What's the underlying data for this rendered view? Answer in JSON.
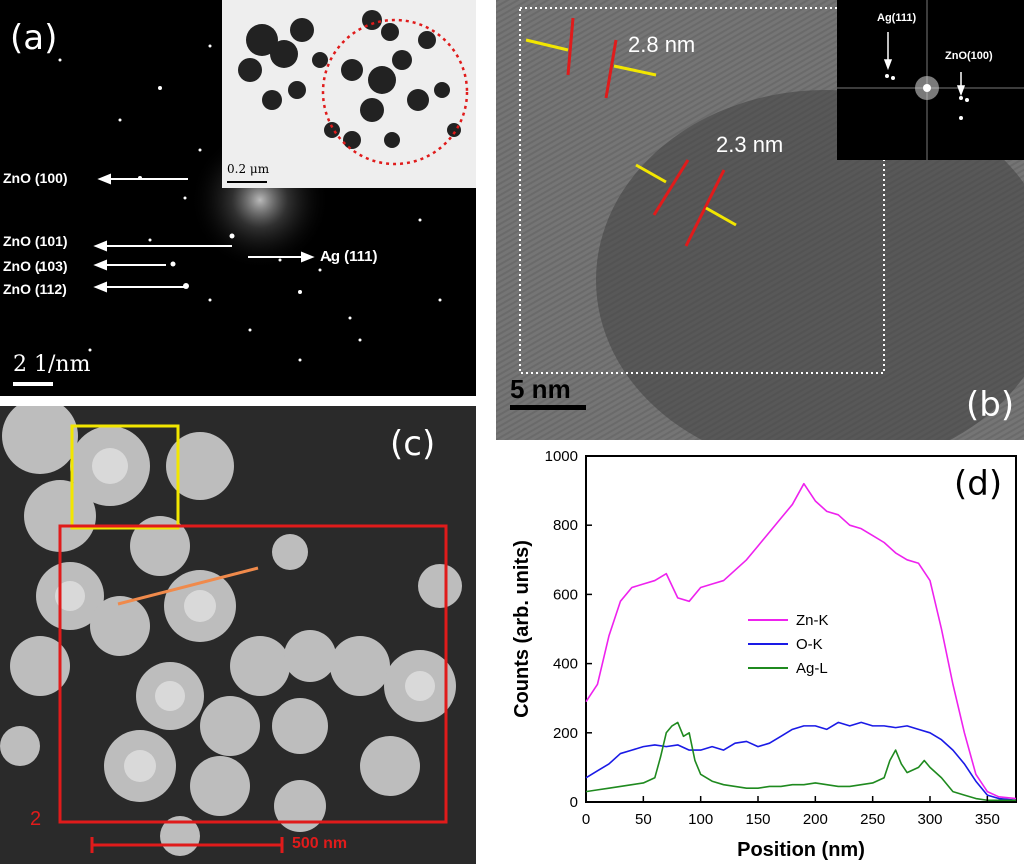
{
  "panel_a": {
    "label": "(a)",
    "reflections": [
      "ZnO (100)",
      "ZnO (101)",
      "ZnO (103)",
      "ZnO (112)",
      "Ag (111)"
    ],
    "scale_bar": "2 1/nm",
    "inset_scale": "0.2 μm"
  },
  "panel_b": {
    "label": "(b)",
    "spacing_1": "2.8 nm",
    "spacing_2": "2.3 nm",
    "scale_bar": "5 nm",
    "fft_labels": [
      "Ag(111)",
      "ZnO(100)"
    ]
  },
  "panel_c": {
    "label": "(c)",
    "box_number": "2",
    "scale_bar": "500 nm"
  },
  "panel_d": {
    "label": "(d)"
  },
  "colors": {
    "zn": "#ee22ee",
    "o": "#1a1ae6",
    "ag": "#1f8a1f",
    "red": "#e01b1b",
    "yellow": "#f2e600",
    "orange": "#f08a4b"
  },
  "chart_data": {
    "type": "line",
    "xlabel": "Position (nm)",
    "ylabel": "Counts (arb. units)",
    "xlim": [
      0,
      375
    ],
    "ylim": [
      0,
      1000
    ],
    "xticks": [
      0,
      50,
      100,
      150,
      200,
      250,
      300,
      350
    ],
    "yticks": [
      0,
      200,
      400,
      600,
      800,
      1000
    ],
    "legend_position": "center",
    "series": [
      {
        "name": "Zn-K",
        "color": "#ee22ee",
        "x": [
          0,
          10,
          20,
          30,
          40,
          50,
          60,
          70,
          80,
          90,
          100,
          110,
          120,
          130,
          140,
          150,
          160,
          170,
          180,
          190,
          200,
          210,
          220,
          230,
          240,
          250,
          260,
          270,
          280,
          290,
          300,
          310,
          320,
          330,
          340,
          350,
          360,
          375
        ],
        "y": [
          290,
          340,
          480,
          580,
          620,
          630,
          640,
          660,
          590,
          580,
          620,
          630,
          640,
          670,
          700,
          740,
          780,
          820,
          860,
          920,
          870,
          840,
          830,
          800,
          790,
          770,
          750,
          720,
          700,
          690,
          640,
          500,
          340,
          200,
          80,
          30,
          15,
          10
        ]
      },
      {
        "name": "O-K",
        "color": "#1a1ae6",
        "x": [
          0,
          10,
          20,
          30,
          40,
          50,
          60,
          70,
          80,
          90,
          100,
          110,
          120,
          130,
          140,
          150,
          160,
          170,
          180,
          190,
          200,
          210,
          220,
          230,
          240,
          250,
          260,
          270,
          280,
          290,
          300,
          310,
          320,
          330,
          340,
          350,
          360,
          375
        ],
        "y": [
          70,
          90,
          110,
          140,
          150,
          160,
          165,
          160,
          165,
          150,
          150,
          160,
          150,
          170,
          175,
          160,
          170,
          190,
          210,
          220,
          220,
          210,
          230,
          220,
          230,
          220,
          220,
          215,
          220,
          210,
          200,
          180,
          150,
          110,
          60,
          20,
          10,
          5
        ]
      },
      {
        "name": "Ag-L",
        "color": "#1f8a1f",
        "x": [
          0,
          10,
          20,
          30,
          40,
          50,
          60,
          65,
          70,
          75,
          80,
          85,
          90,
          95,
          100,
          110,
          120,
          130,
          140,
          150,
          160,
          170,
          180,
          190,
          200,
          210,
          220,
          230,
          240,
          250,
          260,
          265,
          270,
          275,
          280,
          290,
          295,
          300,
          310,
          320,
          330,
          340,
          350,
          375
        ],
        "y": [
          30,
          35,
          40,
          45,
          50,
          55,
          70,
          130,
          200,
          220,
          230,
          190,
          200,
          120,
          80,
          60,
          50,
          45,
          40,
          40,
          45,
          45,
          50,
          50,
          55,
          50,
          45,
          45,
          50,
          55,
          70,
          120,
          150,
          110,
          85,
          100,
          120,
          100,
          70,
          30,
          20,
          10,
          5,
          5
        ]
      }
    ]
  }
}
